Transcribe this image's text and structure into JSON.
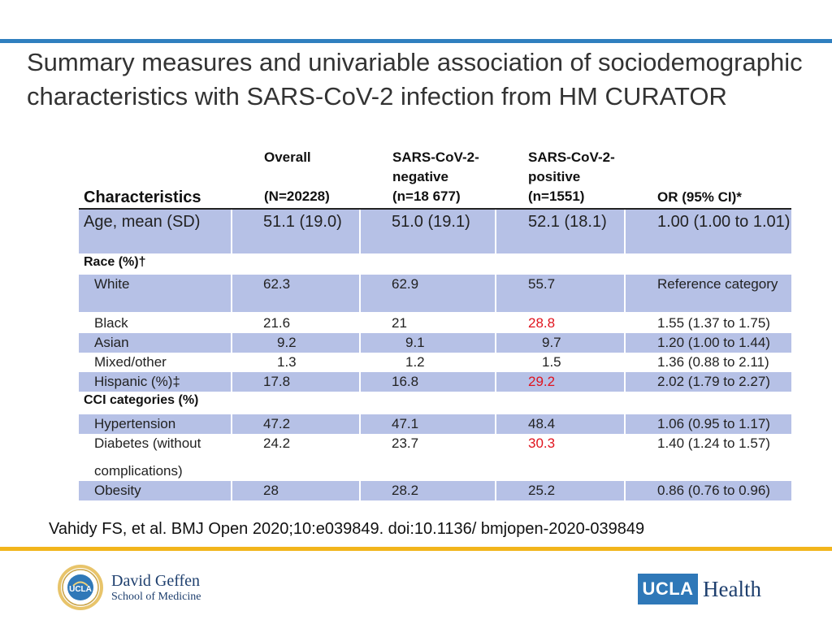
{
  "title": "Summary measures and univariable association of sociodemographic characteristics with SARS-CoV-2 infection from HM CURATOR",
  "table": {
    "headers": {
      "characteristics": "Characteristics",
      "overall": "Overall",
      "overall_n": "(N=20228)",
      "negative": "SARS-CoV-2-negative",
      "negative_n": "(n=18 677)",
      "positive": "SARS-CoV-2-positive",
      "positive_n": "(n=1551)",
      "or": "OR (95% CI)*"
    },
    "age_row": {
      "label": "Age, mean (SD)",
      "overall": "51.1 (19.0)",
      "negative": "51.0 (19.1)",
      "positive": "52.1 (18.1)",
      "or": "1.00 (1.00 to 1.01)"
    },
    "race_section": "Race (%)†",
    "race_rows": [
      {
        "label": "White",
        "overall": "62.3",
        "negative": "62.9",
        "positive": "55.7",
        "or": "Reference category"
      },
      {
        "label": "Black",
        "overall": "21.6",
        "negative": "21",
        "positive": "28.8",
        "or": "1.55 (1.37 to 1.75)"
      },
      {
        "label": "Asian",
        "overall": "9.2",
        "negative": "9.1",
        "positive": "9.7",
        "or": "1.20 (1.00 to 1.44)"
      },
      {
        "label": "Mixed/other",
        "overall": "1.3",
        "negative": "1.2",
        "positive": "1.5",
        "or": "1.36 (0.88 to 2.11)"
      },
      {
        "label": "Hispanic (%)‡",
        "overall": "17.8",
        "negative": "16.8",
        "positive": "29.2",
        "or": "2.02 (1.79 to 2.27)"
      }
    ],
    "cci_section": "CCI categories (%)",
    "cci_rows": [
      {
        "label": "Hypertension",
        "overall": "47.2",
        "negative": "47.1",
        "positive": "48.4",
        "or": "1.06 (0.95 to 1.17)"
      },
      {
        "label": "Diabetes (without complications)",
        "overall": "24.2",
        "negative": "23.7",
        "positive": "30.3",
        "or": "1.40 (1.24 to 1.57)"
      },
      {
        "label": "Obesity",
        "overall": "28",
        "negative": "28.2",
        "positive": "25.2",
        "or": "0.86 (0.76 to 0.96)"
      }
    ]
  },
  "citation": "Vahidy FS, et al. BMJ Open 2020;10:e039849. doi:10.1136/ bmjopen-2020-039849",
  "logos": {
    "school_line1": "David Geffen",
    "school_line2": "School of Medicine",
    "seal_text": "UCLA",
    "ucla": "UCLA",
    "health": "Health"
  },
  "colors": {
    "accent_blue": "#2f7fbf",
    "accent_gold": "#f2b51c",
    "row_shade": "#b6c1e6",
    "highlight_red": "#e0141e"
  }
}
